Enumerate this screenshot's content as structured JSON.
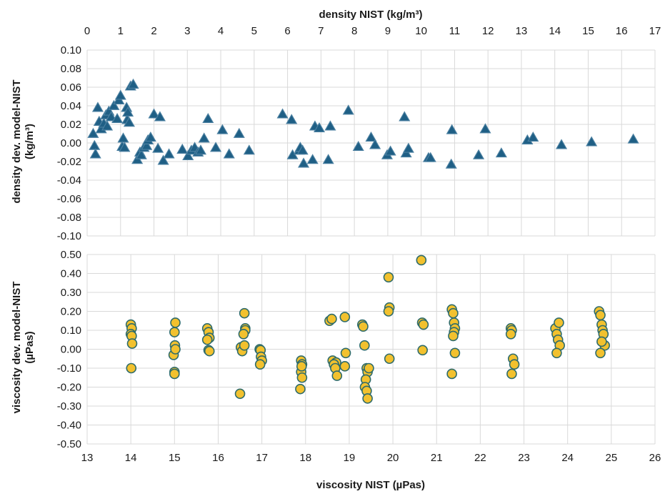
{
  "chart_data": [
    {
      "type": "scatter",
      "panel": "top",
      "xlabel": "density NIST (kg/m³)",
      "ylabel_line1": "density dev. model-NIST",
      "ylabel_line2": "(kg/m³)",
      "xlim": [
        0,
        17
      ],
      "ylim": [
        -0.1,
        0.1
      ],
      "xticks": [
        "0",
        "1",
        "2",
        "3",
        "4",
        "5",
        "6",
        "7",
        "8",
        "9",
        "10",
        "11",
        "12",
        "13",
        "14",
        "15",
        "16",
        "17"
      ],
      "yticks": [
        "0.10",
        "0.08",
        "0.06",
        "0.04",
        "0.02",
        "0.00",
        "-0.02",
        "-0.04",
        "-0.06",
        "-0.08",
        "-0.10"
      ],
      "marker": "triangle",
      "fill": "#1f5f85",
      "stroke": "#4a7fa0",
      "x": [
        0.18,
        0.22,
        0.25,
        0.32,
        0.36,
        0.42,
        0.5,
        0.56,
        0.6,
        0.65,
        0.72,
        0.8,
        0.9,
        0.95,
        1.0,
        1.05,
        1.08,
        1.12,
        1.18,
        1.2,
        1.22,
        1.26,
        1.3,
        1.38,
        1.5,
        1.58,
        1.62,
        1.7,
        1.78,
        1.82,
        1.9,
        2.0,
        2.12,
        2.18,
        2.28,
        2.45,
        2.85,
        3.02,
        3.12,
        3.22,
        3.32,
        3.4,
        3.5,
        3.62,
        3.85,
        4.05,
        4.25,
        4.55,
        4.85,
        5.85,
        6.12,
        6.15,
        6.35,
        6.38,
        6.45,
        6.48,
        6.75,
        6.82,
        6.95,
        7.22,
        7.28,
        7.82,
        8.12,
        8.5,
        8.62,
        8.98,
        9.08,
        9.5,
        9.55,
        9.62,
        10.22,
        10.28,
        10.9,
        10.92,
        11.72,
        11.92,
        12.4,
        13.18,
        13.35,
        14.2,
        15.1,
        16.35
      ],
      "y": [
        0.01,
        -0.003,
        -0.012,
        0.038,
        0.023,
        0.015,
        0.021,
        0.03,
        0.018,
        0.034,
        0.028,
        0.04,
        0.026,
        0.046,
        0.051,
        -0.004,
        0.005,
        -0.005,
        0.038,
        0.025,
        0.033,
        0.022,
        0.061,
        0.063,
        -0.018,
        -0.01,
        -0.013,
        -0.005,
        -0.003,
        0.003,
        0.006,
        0.031,
        -0.006,
        0.028,
        -0.019,
        -0.012,
        -0.007,
        -0.014,
        -0.008,
        -0.005,
        -0.01,
        -0.008,
        0.005,
        0.026,
        -0.005,
        0.014,
        -0.012,
        0.01,
        -0.008,
        0.031,
        0.025,
        -0.013,
        -0.008,
        -0.005,
        -0.008,
        -0.022,
        -0.018,
        0.018,
        0.016,
        -0.018,
        0.018,
        0.035,
        -0.004,
        0.006,
        -0.002,
        -0.013,
        -0.009,
        0.028,
        -0.011,
        -0.006,
        -0.016,
        -0.016,
        -0.023,
        0.014,
        -0.013,
        0.015,
        -0.011,
        0.003,
        0.006,
        -0.002,
        0.001,
        0.004
      ]
    },
    {
      "type": "scatter",
      "panel": "bottom",
      "xlabel": "viscosity NIST (µPas)",
      "ylabel_line1": "viscosity dev. model-NIST",
      "ylabel_line2": "(µPas)",
      "xlim": [
        13,
        26
      ],
      "ylim": [
        -0.5,
        0.5
      ],
      "xticks": [
        "13",
        "14",
        "15",
        "16",
        "17",
        "18",
        "19",
        "20",
        "21",
        "22",
        "23",
        "24",
        "25",
        "26"
      ],
      "yticks": [
        "0.50",
        "0.40",
        "0.30",
        "0.20",
        "0.10",
        "0.00",
        "-0.10",
        "-0.20",
        "-0.30",
        "-0.40",
        "-0.50"
      ],
      "marker": "circle",
      "fill": "#f2c12e",
      "stroke": "#2e6b6b",
      "x": [
        14.0,
        14.02,
        14.0,
        14.02,
        14.03,
        14.01,
        15.02,
        15.0,
        15.01,
        14.98,
        15.02,
        15.0,
        15.0,
        15.75,
        15.78,
        15.8,
        15.75,
        15.78,
        15.8,
        16.52,
        16.6,
        16.62,
        16.62,
        16.58,
        16.55,
        16.5,
        16.6,
        16.95,
        16.97,
        16.98,
        17.0,
        16.96,
        17.9,
        17.92,
        17.9,
        17.92,
        17.88,
        17.91,
        18.55,
        18.6,
        18.62,
        18.7,
        18.65,
        18.68,
        18.72,
        18.9,
        18.92,
        18.9,
        19.3,
        19.32,
        19.35,
        19.4,
        19.42,
        19.45,
        19.38,
        19.36,
        19.4,
        19.42,
        19.9,
        19.92,
        19.9,
        19.92,
        20.65,
        20.67,
        20.7,
        20.68,
        21.35,
        21.38,
        21.4,
        21.42,
        21.4,
        21.38,
        21.42,
        21.35,
        22.7,
        22.72,
        22.7,
        22.75,
        22.78,
        22.72,
        23.72,
        23.75,
        23.78,
        23.8,
        23.82,
        23.75,
        24.72,
        24.75,
        24.78,
        24.8,
        24.82,
        24.85,
        24.78,
        24.75
      ],
      "y": [
        0.13,
        0.11,
        0.08,
        0.07,
        0.03,
        -0.1,
        0.14,
        0.09,
        0.02,
        -0.03,
        0.0,
        -0.12,
        -0.13,
        0.11,
        0.09,
        0.06,
        0.05,
        -0.005,
        -0.01,
        0.01,
        0.19,
        0.11,
        0.1,
        0.08,
        -0.01,
        -0.235,
        0.02,
        0.0,
        -0.005,
        -0.04,
        -0.06,
        -0.08,
        -0.06,
        -0.08,
        -0.12,
        -0.15,
        -0.21,
        -0.09,
        0.15,
        0.16,
        -0.06,
        -0.07,
        -0.08,
        -0.1,
        -0.14,
        0.17,
        -0.02,
        -0.09,
        0.13,
        0.12,
        0.02,
        -0.1,
        -0.12,
        -0.1,
        -0.16,
        -0.2,
        -0.22,
        -0.26,
        0.38,
        0.22,
        0.2,
        -0.05,
        0.47,
        0.14,
        0.13,
        -0.005,
        0.21,
        0.19,
        0.14,
        0.11,
        0.09,
        0.07,
        -0.02,
        -0.13,
        0.11,
        0.1,
        0.08,
        -0.05,
        -0.08,
        -0.13,
        0.11,
        0.08,
        0.05,
        0.14,
        0.02,
        -0.02,
        0.2,
        0.18,
        0.13,
        0.1,
        0.08,
        0.02,
        0.04,
        -0.02
      ]
    }
  ]
}
